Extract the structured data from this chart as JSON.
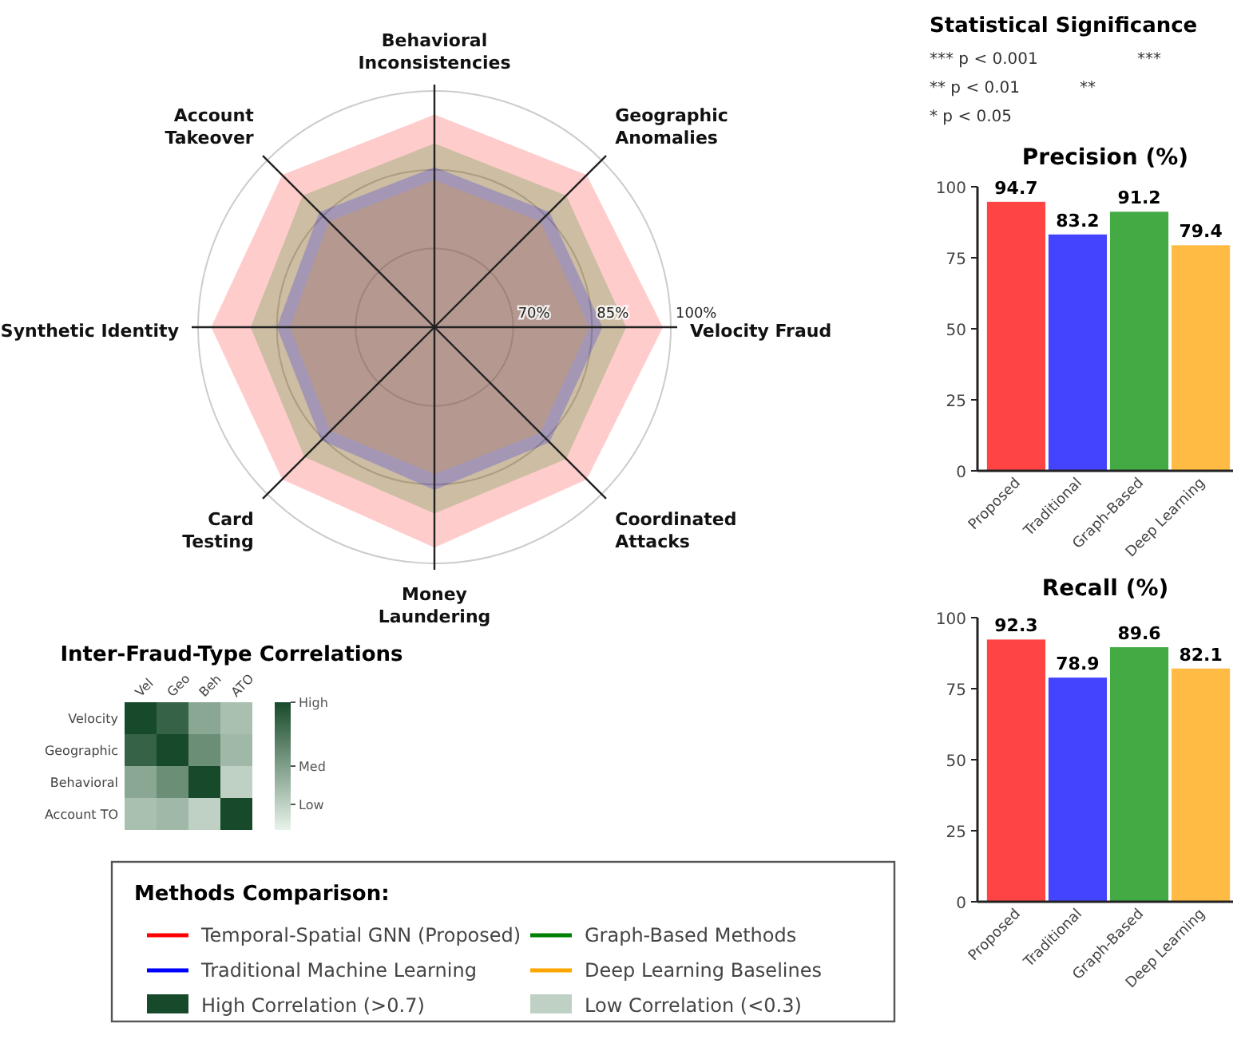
{
  "chart_data": [
    {
      "type": "radar",
      "legend_title": "Methods Comparison:",
      "legend": "bottom",
      "categories": [
        "Behavioral Inconsistencies",
        "Geographic Anomalies",
        "Velocity Fraud",
        "Coordinated Attacks",
        "Money Laundering",
        "Card Testing",
        "Synthetic Identity",
        "Account Takeover"
      ],
      "ylim": [
        55,
        100
      ],
      "yticks": [
        {
          "value": 70,
          "label": "70%"
        },
        {
          "value": 85,
          "label": "85%"
        },
        {
          "value": 100,
          "label": "100%"
        }
      ],
      "series": [
        {
          "name": "Temporal-Spatial GNN (Proposed)",
          "color": "#ff0000",
          "values": [
            95.5,
            96,
            98.5,
            96,
            97,
            96,
            97.5,
            96
          ]
        },
        {
          "name": "Traditional Machine Learning",
          "color": "#0000ff",
          "values": [
            85.5,
            86,
            87,
            86,
            86,
            85.5,
            85,
            86
          ]
        },
        {
          "name": "Graph-Based Methods",
          "color": "#008000",
          "values": [
            90,
            90.5,
            91.5,
            90.5,
            90.5,
            90,
            90,
            90.5
          ]
        },
        {
          "name": "Deep Learning Baselines",
          "color": "#ffa500",
          "values": [
            83,
            83.5,
            84.5,
            83.5,
            83,
            83,
            82.5,
            83.5
          ]
        }
      ]
    },
    {
      "type": "heatmap",
      "title": "Inter-Fraud-Type Correlations",
      "categories": [
        "Vel",
        "Geo",
        "Beh",
        "ATO"
      ],
      "y_categories": [
        "Velocity",
        "Geographic",
        "Behavioral",
        "Account TO"
      ],
      "cells": [
        [
          1,
          0.85,
          0.45,
          0.3
        ],
        [
          0.85,
          1,
          0.6,
          0.35
        ],
        [
          0.45,
          0.6,
          1,
          0.2
        ],
        [
          0.3,
          0.35,
          0.2,
          1
        ]
      ],
      "clim": [
        0,
        1
      ],
      "cticks": [
        {
          "value": 1,
          "label": "High"
        },
        {
          "value": 0.5,
          "label": "Med"
        },
        {
          "value": 0.2,
          "label": "Low"
        }
      ],
      "annotations": [
        "High Correlation (>0.7)",
        "Low Correlation (<0.3)"
      ]
    },
    {
      "type": "bar",
      "title": "Precision (%)",
      "categories": [
        "Proposed",
        "Traditional",
        "Graph-Based",
        "Deep Learning"
      ],
      "values": [
        94.7,
        83.2,
        91.2,
        79.4
      ],
      "colors": [
        "#ff4444",
        "#4444ff",
        "#44aa44",
        "#ffbb44"
      ],
      "ylim": [
        0,
        100
      ],
      "yticks": [
        0,
        25,
        50,
        75,
        100
      ],
      "data_labels": true
    },
    {
      "type": "bar",
      "title": "Recall (%)",
      "categories": [
        "Proposed",
        "Traditional",
        "Graph-Based",
        "Deep Learning"
      ],
      "values": [
        92.3,
        78.9,
        89.6,
        82.1
      ],
      "colors": [
        "#ff4444",
        "#4444ff",
        "#44aa44",
        "#ffbb44"
      ],
      "ylim": [
        0,
        100
      ],
      "yticks": [
        0,
        25,
        50,
        75,
        100
      ],
      "data_labels": true
    },
    {
      "type": "other",
      "title": "Statistical Significance",
      "annotations": [
        "*** p < 0.001",
        "** p < 0.01",
        "* p < 0.05",
        "***",
        "**"
      ]
    }
  ]
}
